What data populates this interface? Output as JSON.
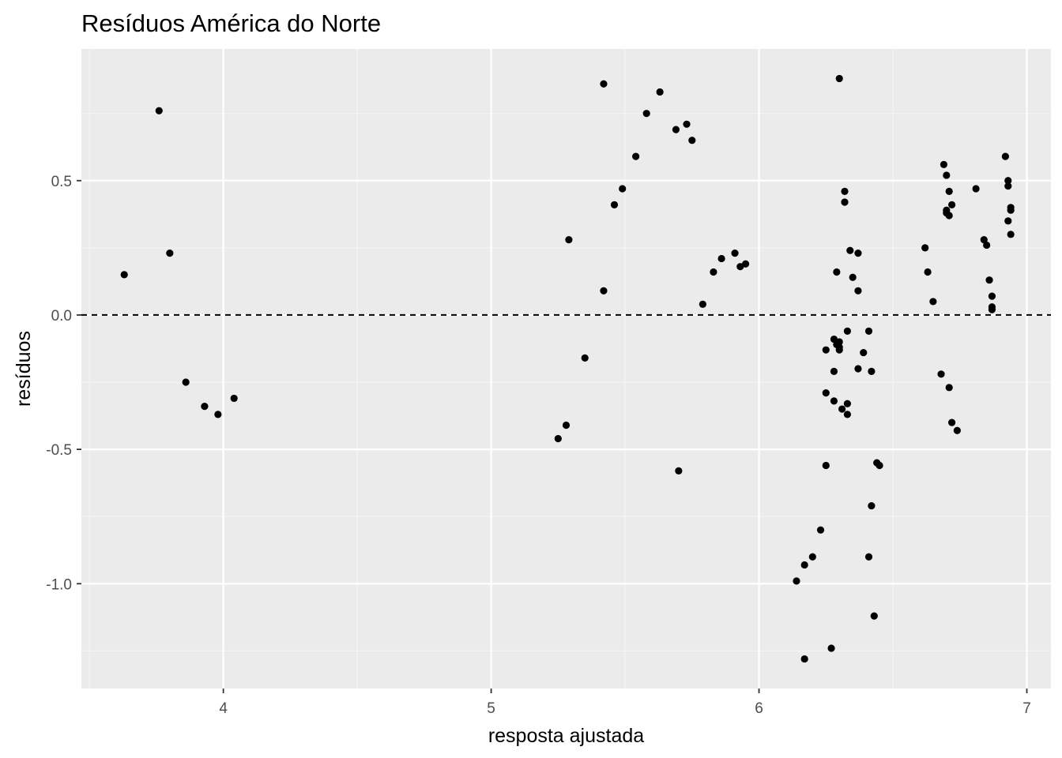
{
  "chart_data": {
    "type": "scatter",
    "title": "Resíduos América do Norte",
    "xlabel": "resposta ajustada",
    "ylabel": "resíduos",
    "xlim": [
      3.47,
      7.09
    ],
    "ylim": [
      -1.39,
      0.99
    ],
    "x_ticks": [
      4,
      5,
      6,
      7
    ],
    "x_tick_labels": [
      "4",
      "5",
      "6",
      "7"
    ],
    "x_minor_ticks": [
      3.5,
      4.5,
      5.5,
      6.5
    ],
    "y_ticks": [
      -1.0,
      -0.5,
      0.0,
      0.5
    ],
    "y_tick_labels": [
      "-1.0",
      "-0.5",
      "0.0",
      "0.5"
    ],
    "y_minor_ticks": [
      -1.25,
      -0.75,
      -0.25,
      0.25,
      0.75
    ],
    "reference_line": {
      "y": 0.0,
      "style": "dashed"
    },
    "grid": true,
    "colors": {
      "panel_bg": "#ebebeb",
      "grid_major": "#ffffff",
      "grid_minor": "#f5f5f5",
      "point": "#000000",
      "tick_label": "#4d4d4d"
    },
    "points": [
      [
        3.63,
        0.15
      ],
      [
        3.76,
        0.76
      ],
      [
        3.8,
        0.23
      ],
      [
        3.86,
        -0.25
      ],
      [
        3.93,
        -0.34
      ],
      [
        3.98,
        -0.37
      ],
      [
        4.04,
        -0.31
      ],
      [
        5.25,
        -0.46
      ],
      [
        5.28,
        -0.41
      ],
      [
        5.29,
        0.28
      ],
      [
        5.35,
        -0.16
      ],
      [
        5.42,
        0.86
      ],
      [
        5.42,
        0.09
      ],
      [
        5.46,
        0.41
      ],
      [
        5.49,
        0.47
      ],
      [
        5.54,
        0.59
      ],
      [
        5.58,
        0.75
      ],
      [
        5.63,
        0.83
      ],
      [
        5.69,
        0.69
      ],
      [
        5.7,
        -0.58
      ],
      [
        5.73,
        0.71
      ],
      [
        5.75,
        0.65
      ],
      [
        5.79,
        0.04
      ],
      [
        5.83,
        0.16
      ],
      [
        5.86,
        0.21
      ],
      [
        5.91,
        0.23
      ],
      [
        5.93,
        0.18
      ],
      [
        5.95,
        0.19
      ],
      [
        6.14,
        -0.99
      ],
      [
        6.17,
        -0.93
      ],
      [
        6.17,
        -1.28
      ],
      [
        6.2,
        -0.9
      ],
      [
        6.23,
        -0.8
      ],
      [
        6.25,
        -0.29
      ],
      [
        6.25,
        -0.56
      ],
      [
        6.25,
        -0.13
      ],
      [
        6.27,
        -1.24
      ],
      [
        6.28,
        -0.32
      ],
      [
        6.28,
        -0.21
      ],
      [
        6.28,
        -0.09
      ],
      [
        6.29,
        -0.11
      ],
      [
        6.29,
        0.16
      ],
      [
        6.3,
        -0.12
      ],
      [
        6.3,
        -0.13
      ],
      [
        6.3,
        -0.1
      ],
      [
        6.3,
        0.88
      ],
      [
        6.31,
        -0.35
      ],
      [
        6.32,
        0.46
      ],
      [
        6.32,
        0.42
      ],
      [
        6.33,
        -0.06
      ],
      [
        6.33,
        -0.33
      ],
      [
        6.33,
        -0.37
      ],
      [
        6.34,
        0.24
      ],
      [
        6.35,
        0.14
      ],
      [
        6.37,
        0.23
      ],
      [
        6.37,
        0.09
      ],
      [
        6.37,
        -0.2
      ],
      [
        6.39,
        -0.14
      ],
      [
        6.41,
        -0.06
      ],
      [
        6.41,
        -0.9
      ],
      [
        6.42,
        -0.21
      ],
      [
        6.42,
        -0.71
      ],
      [
        6.43,
        -1.12
      ],
      [
        6.44,
        -0.55
      ],
      [
        6.45,
        -0.56
      ],
      [
        6.62,
        0.25
      ],
      [
        6.63,
        0.16
      ],
      [
        6.65,
        0.05
      ],
      [
        6.68,
        -0.22
      ],
      [
        6.69,
        0.56
      ],
      [
        6.7,
        0.52
      ],
      [
        6.7,
        0.39
      ],
      [
        6.7,
        0.38
      ],
      [
        6.71,
        -0.27
      ],
      [
        6.71,
        0.46
      ],
      [
        6.71,
        0.37
      ],
      [
        6.72,
        0.41
      ],
      [
        6.72,
        -0.4
      ],
      [
        6.74,
        -0.43
      ],
      [
        6.81,
        0.47
      ],
      [
        6.84,
        0.28
      ],
      [
        6.85,
        0.26
      ],
      [
        6.86,
        0.13
      ],
      [
        6.87,
        0.07
      ],
      [
        6.87,
        0.03
      ],
      [
        6.87,
        0.02
      ],
      [
        6.92,
        0.59
      ],
      [
        6.93,
        0.5
      ],
      [
        6.93,
        0.48
      ],
      [
        6.93,
        0.35
      ],
      [
        6.94,
        0.4
      ],
      [
        6.94,
        0.39
      ],
      [
        6.94,
        0.3
      ]
    ]
  }
}
